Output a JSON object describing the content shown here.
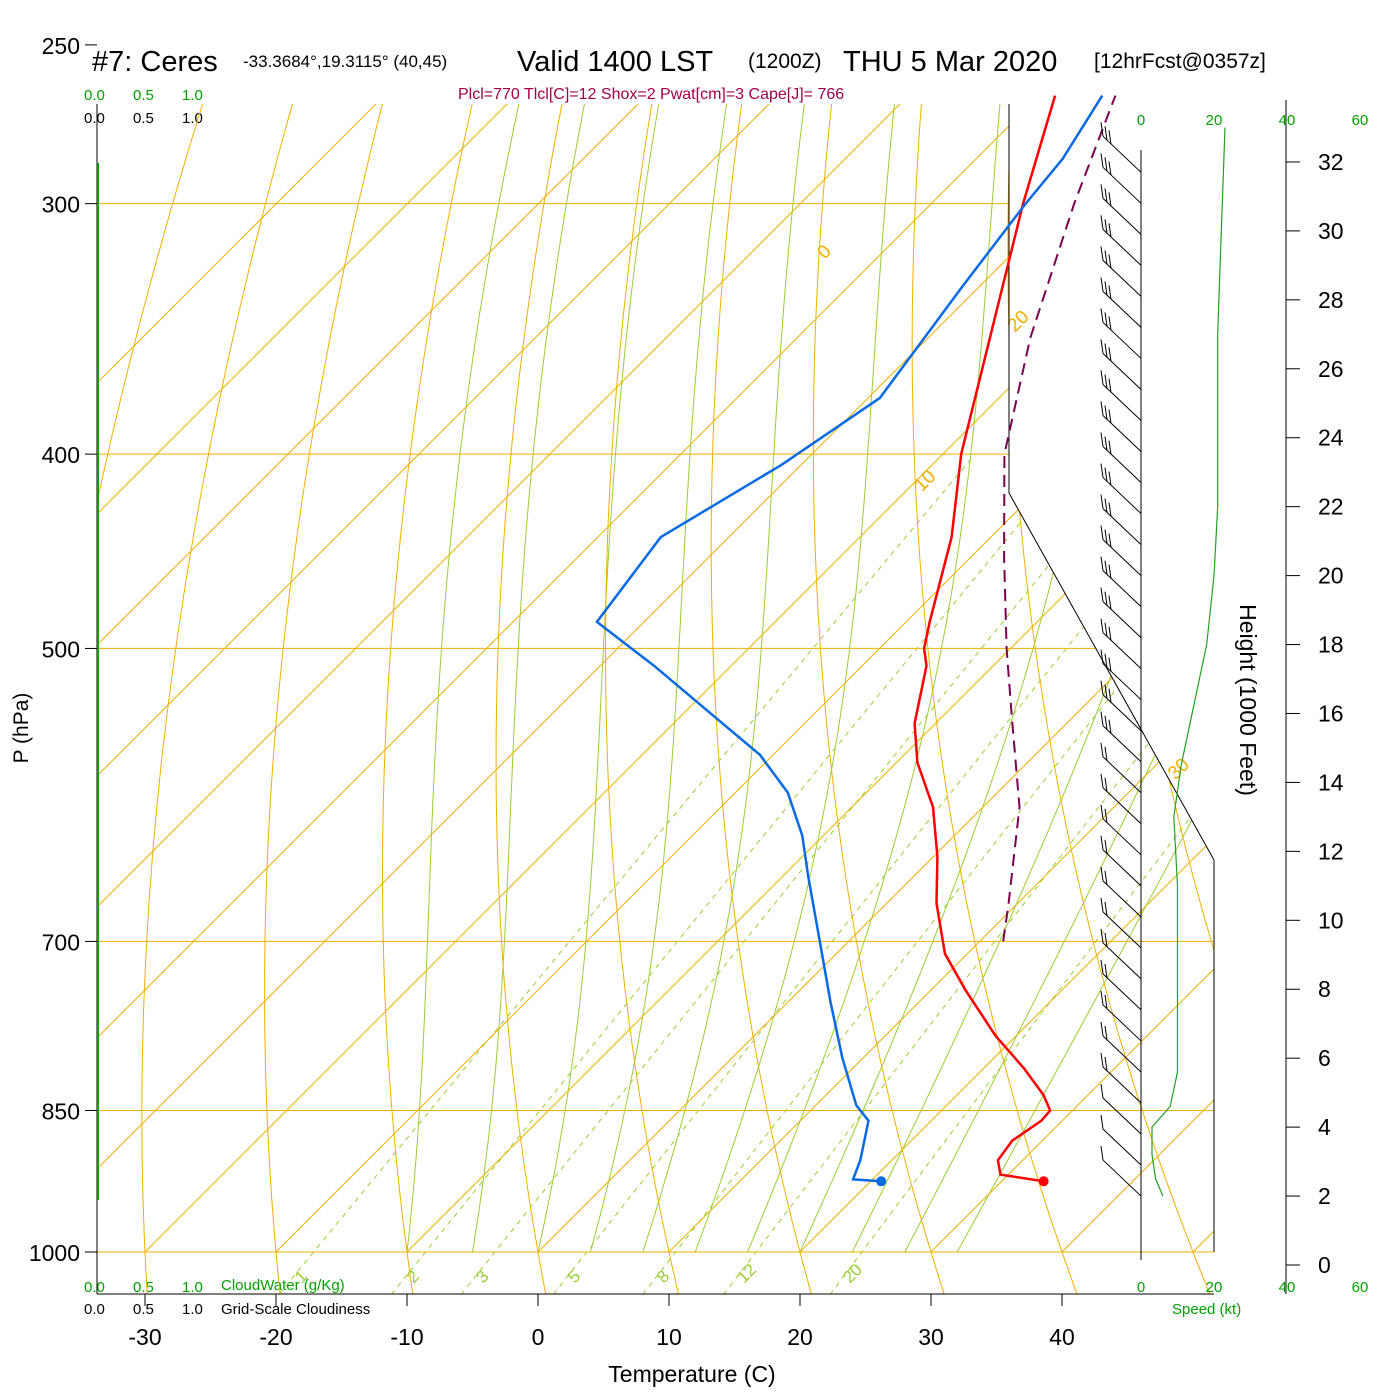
{
  "header": {
    "title": "#7: Ceres",
    "coords": "-33.3684°,19.3115° (40,45)",
    "valid": "Valid 1400 LST",
    "zulu": "(1200Z)",
    "date": "THU 5 Mar 2020",
    "forecast": "[12hrFcst@0357z]"
  },
  "indices_line": "Plcl=770 Tlcl[C]=12 Shox=2 Pwat[cm]=3 Cape[J]= 766",
  "cloud_scale": {
    "top_green": [
      "0.0",
      "0.5",
      "1.0"
    ],
    "top_black": [
      "0.0",
      "0.5",
      "1.0"
    ],
    "bottom_green": [
      "0.0",
      "0.5",
      "1.0"
    ],
    "bottom_black": [
      "0.0",
      "0.5",
      "1.0"
    ],
    "cloudwater_label": "CloudWater (g/Kg)",
    "cloudiness_label": "Grid-Scale Cloudiness"
  },
  "speed_axis": {
    "top_ticks": [
      "0",
      "20",
      "40",
      "60"
    ],
    "bottom_ticks": [
      "0",
      "20",
      "40",
      "60"
    ],
    "label": "Speed (kt)"
  },
  "colors": {
    "temperature": "#ff0000",
    "dewpoint": "#0a6ae6",
    "parcel": "#7a0050",
    "isotherm": "#f0b000",
    "dry_adiabat": "#f0b000",
    "moist_adiabat": "#9acd32",
    "mixing_ratio": "#9acd32",
    "green_text": "#00a000",
    "magenta_text": "#a0004a"
  },
  "chart_data": {
    "type": "line",
    "subtype": "skew-t log-p sounding",
    "xlabel": "Temperature (C)",
    "ylabel": "P (hPa)",
    "right_label": "Height (1000 Feet)",
    "x_ticks": [
      -30,
      -20,
      -10,
      0,
      10,
      20,
      30,
      40
    ],
    "pressure_ticks": [
      250,
      300,
      400,
      500,
      700,
      850,
      1000
    ],
    "pressure_range": [
      1000,
      250
    ],
    "height_ticks_kft": [
      0,
      2,
      4,
      6,
      8,
      10,
      12,
      14,
      16,
      18,
      20,
      22,
      24,
      26,
      28,
      30,
      32
    ],
    "isotherm_labels": [
      "-30",
      "-20",
      "-10",
      "0",
      "10",
      "20",
      "30"
    ],
    "dry_adiabat_labels": [
      "0",
      "10",
      "20",
      "30"
    ],
    "mixing_ratio_labels": [
      "1",
      "2",
      "3",
      "5",
      "8",
      "12",
      "20"
    ],
    "series": [
      {
        "name": "temperature",
        "points": [
          {
            "p": 922,
            "t": 33.2
          },
          {
            "p": 915,
            "t": 29.4
          },
          {
            "p": 900,
            "t": 28.1
          },
          {
            "p": 880,
            "t": 27.7
          },
          {
            "p": 860,
            "t": 28.4
          },
          {
            "p": 850,
            "t": 28.3
          },
          {
            "p": 835,
            "t": 26.6
          },
          {
            "p": 810,
            "t": 23.1
          },
          {
            "p": 780,
            "t": 18.4
          },
          {
            "p": 740,
            "t": 12.6
          },
          {
            "p": 710,
            "t": 8.3
          },
          {
            "p": 670,
            "t": 3.8
          },
          {
            "p": 635,
            "t": 0.3
          },
          {
            "p": 600,
            "t": -3.8
          },
          {
            "p": 570,
            "t": -8.4
          },
          {
            "p": 545,
            "t": -11.6
          },
          {
            "p": 510,
            "t": -15.1
          },
          {
            "p": 500,
            "t": -16.6
          },
          {
            "p": 485,
            "t": -18.2
          },
          {
            "p": 440,
            "t": -23.0
          },
          {
            "p": 400,
            "t": -28.6
          },
          {
            "p": 300,
            "t": -43.0
          },
          {
            "p": 265,
            "t": -48.8
          }
        ]
      },
      {
        "name": "dewpoint",
        "points": [
          {
            "p": 922,
            "t": 20.8
          },
          {
            "p": 920,
            "t": 18.5
          },
          {
            "p": 900,
            "t": 17.6
          },
          {
            "p": 860,
            "t": 15.2
          },
          {
            "p": 845,
            "t": 13.1
          },
          {
            "p": 800,
            "t": 8.4
          },
          {
            "p": 750,
            "t": 3.2
          },
          {
            "p": 700,
            "t": -2.2
          },
          {
            "p": 650,
            "t": -8.0
          },
          {
            "p": 620,
            "t": -11.6
          },
          {
            "p": 590,
            "t": -16.0
          },
          {
            "p": 565,
            "t": -21.0
          },
          {
            "p": 540,
            "t": -27.6
          },
          {
            "p": 510,
            "t": -35.9
          },
          {
            "p": 485,
            "t": -43.6
          },
          {
            "p": 440,
            "t": -45.2
          },
          {
            "p": 405,
            "t": -41.5
          },
          {
            "p": 375,
            "t": -39.1
          },
          {
            "p": 330,
            "t": -41.3
          },
          {
            "p": 300,
            "t": -42.8
          },
          {
            "p": 285,
            "t": -43.4
          },
          {
            "p": 265,
            "t": -45.2
          }
        ]
      },
      {
        "name": "parcel",
        "points": [
          {
            "p": 700,
            "t": 11.8
          },
          {
            "p": 670,
            "t": 9.3
          },
          {
            "p": 600,
            "t": 2.8
          },
          {
            "p": 540,
            "t": -4.8
          },
          {
            "p": 500,
            "t": -10.3
          },
          {
            "p": 450,
            "t": -17.5
          },
          {
            "p": 400,
            "t": -25.3
          },
          {
            "p": 350,
            "t": -32.2
          },
          {
            "p": 300,
            "t": -39.1
          },
          {
            "p": 265,
            "t": -44.2
          }
        ]
      }
    ],
    "surface_points": [
      {
        "name": "surface temperature",
        "p": 922,
        "t": 33.2
      },
      {
        "name": "surface dewpoint",
        "p": 922,
        "t": 20.8
      }
    ],
    "wind_speed_profile_kt": [
      {
        "h_kft": 2.0,
        "spd": 6
      },
      {
        "h_kft": 2.5,
        "spd": 4
      },
      {
        "h_kft": 3.2,
        "spd": 3
      },
      {
        "h_kft": 4.0,
        "spd": 3
      },
      {
        "h_kft": 4.6,
        "spd": 8
      },
      {
        "h_kft": 5.6,
        "spd": 10
      },
      {
        "h_kft": 8.0,
        "spd": 10
      },
      {
        "h_kft": 11.0,
        "spd": 10
      },
      {
        "h_kft": 13.0,
        "spd": 9
      },
      {
        "h_kft": 14.5,
        "spd": 11
      },
      {
        "h_kft": 16.0,
        "spd": 14
      },
      {
        "h_kft": 18.0,
        "spd": 18
      },
      {
        "h_kft": 20.0,
        "spd": 20
      },
      {
        "h_kft": 22.0,
        "spd": 21
      },
      {
        "h_kft": 24.0,
        "spd": 21
      },
      {
        "h_kft": 27.0,
        "spd": 21
      },
      {
        "h_kft": 30.0,
        "spd": 22
      },
      {
        "h_kft": 33.0,
        "spd": 23
      }
    ]
  }
}
